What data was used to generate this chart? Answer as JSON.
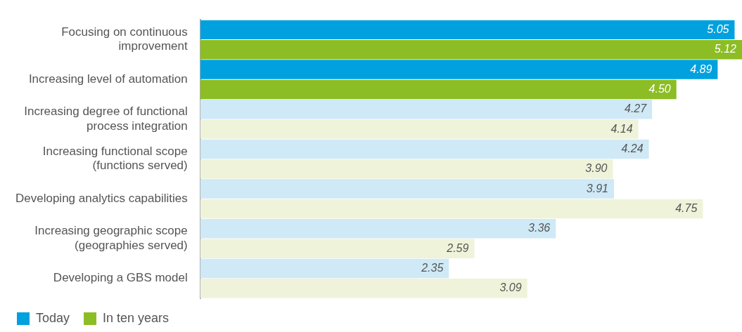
{
  "chart_data": {
    "type": "bar",
    "orientation": "horizontal",
    "legend": "bottom left",
    "tick_labels": "y",
    "xlim": [
      0,
      5.12
    ],
    "categories": [
      "Focusing on continuous improvement",
      "Increasing level of automation",
      "Increasing degree of functional process integration",
      "Increasing functional scope (functions served)",
      "Developing analytics capabilities",
      "Increasing geographic scope (geographies served)",
      "Developing a GBS model"
    ],
    "series": [
      {
        "name": "Today",
        "color": "#00a1de",
        "colors": [
          "#00a1de",
          "#00a1de",
          "#cfe9f6",
          "#cfe9f6",
          "#cfe9f6",
          "#cfe9f6",
          "#cfe9f6"
        ],
        "values": [
          5.05,
          4.89,
          4.27,
          4.24,
          3.91,
          3.36,
          2.35
        ],
        "value_labels": [
          "5.05",
          "4.89",
          "4.27",
          "4.24",
          "3.91",
          "3.36",
          "2.35"
        ]
      },
      {
        "name": "In ten years",
        "color": "#8cbd24",
        "colors": [
          "#8cbd24",
          "#8cbd24",
          "#eef3da",
          "#eef3da",
          "#eef3da",
          "#eef3da",
          "#eef3da"
        ],
        "values": [
          5.12,
          4.5,
          4.14,
          3.9,
          4.75,
          2.59,
          3.09
        ],
        "value_labels": [
          "5.12",
          "4.50",
          "4.14",
          "3.90",
          "4.75",
          "2.59",
          "3.09"
        ]
      }
    ]
  }
}
